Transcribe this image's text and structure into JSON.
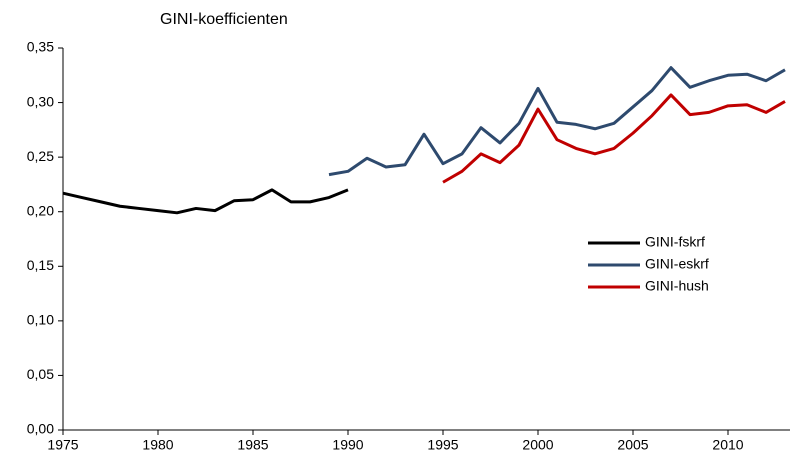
{
  "chart_data": {
    "type": "line",
    "title": "GINI-koefficienten",
    "xlim": [
      1975,
      2013
    ],
    "xticks": [
      1975,
      1980,
      1985,
      1990,
      1995,
      2000,
      2005,
      2010
    ],
    "ylim": [
      0,
      0.35
    ],
    "yticks": [
      {
        "value": 0,
        "label": "0,00"
      },
      {
        "value": 0.05,
        "label": "0,05"
      },
      {
        "value": 0.1,
        "label": "0,10"
      },
      {
        "value": 0.15,
        "label": "0,15"
      },
      {
        "value": 0.2,
        "label": "0,20"
      },
      {
        "value": 0.25,
        "label": "0,25"
      },
      {
        "value": 0.3,
        "label": "0,30"
      },
      {
        "value": 0.35,
        "label": "0,35"
      }
    ],
    "grid": false,
    "legend": "right",
    "series": [
      {
        "name": "GINI-fskrf",
        "color": "#000000",
        "x": [
          1975,
          1976,
          1977,
          1978,
          1979,
          1980,
          1981,
          1982,
          1983,
          1984,
          1985,
          1986,
          1987,
          1988,
          1989,
          1990
        ],
        "values": [
          0.217,
          0.213,
          0.209,
          0.205,
          0.203,
          0.201,
          0.199,
          0.203,
          0.201,
          0.21,
          0.211,
          0.22,
          0.209,
          0.209,
          0.213,
          0.22
        ]
      },
      {
        "name": "GINI-eskrf",
        "color": "#2e4a6e",
        "x": [
          1989,
          1990,
          1991,
          1992,
          1993,
          1994,
          1995,
          1996,
          1997,
          1998,
          1999,
          2000,
          2001,
          2002,
          2003,
          2004,
          2005,
          2006,
          2007,
          2008,
          2009,
          2010,
          2011,
          2012,
          2013
        ],
        "values": [
          0.234,
          0.237,
          0.249,
          0.241,
          0.243,
          0.271,
          0.244,
          0.253,
          0.277,
          0.263,
          0.281,
          0.313,
          0.282,
          0.28,
          0.276,
          0.281,
          0.296,
          0.311,
          0.332,
          0.314,
          0.32,
          0.325,
          0.326,
          0.32,
          0.33
        ]
      },
      {
        "name": "GINI-hush",
        "color": "#c00000",
        "x": [
          1995,
          1996,
          1997,
          1998,
          1999,
          2000,
          2001,
          2002,
          2003,
          2004,
          2005,
          2006,
          2007,
          2008,
          2009,
          2010,
          2011,
          2012,
          2013
        ],
        "values": [
          0.227,
          0.237,
          0.253,
          0.245,
          0.261,
          0.294,
          0.266,
          0.258,
          0.253,
          0.258,
          0.272,
          0.288,
          0.307,
          0.289,
          0.291,
          0.297,
          0.298,
          0.291,
          0.301
        ]
      }
    ]
  }
}
